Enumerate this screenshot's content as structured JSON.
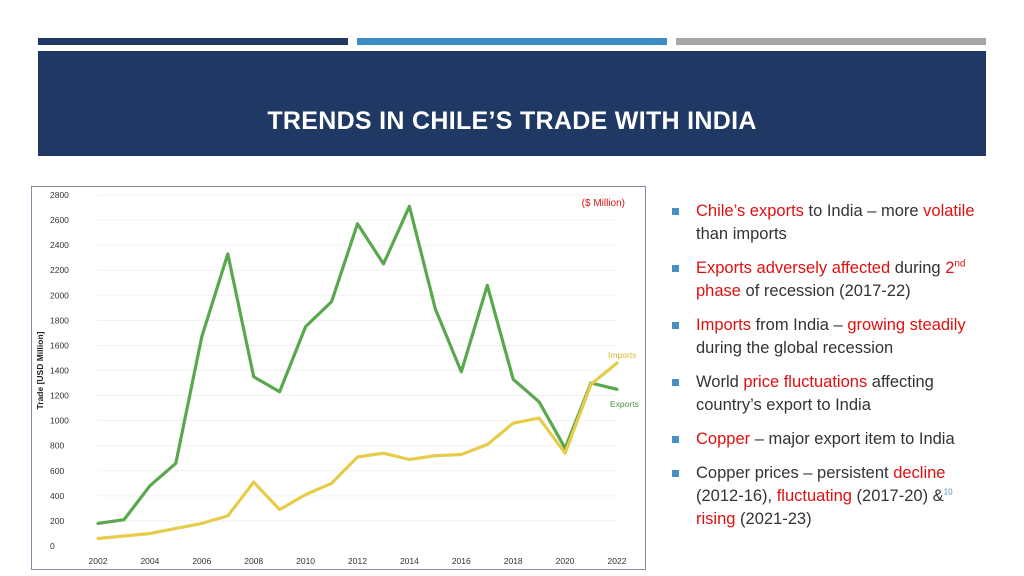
{
  "slide": {
    "title": "TRENDS IN CHILE’S TRADE WITH INDIA",
    "colors": {
      "title_band": "#1f3864",
      "accent_blue": "#3c8dc5",
      "accent_gray": "#a6a6a6",
      "highlight": "#e01010"
    }
  },
  "chart_data": {
    "type": "line",
    "unit_label": "($ Million)",
    "ylabel": "Trade [USD Million]",
    "xlabel": "",
    "ylim": [
      0,
      2800
    ],
    "xlim": [
      2002,
      2022
    ],
    "y_ticks": [
      0,
      200,
      400,
      600,
      800,
      1000,
      1200,
      1400,
      1600,
      1800,
      2000,
      2200,
      2400,
      2600,
      2800
    ],
    "x_ticks": [
      2002,
      2004,
      2006,
      2008,
      2010,
      2012,
      2014,
      2016,
      2018,
      2020,
      2022
    ],
    "grid": true,
    "x": [
      2002,
      2003,
      2004,
      2005,
      2006,
      2007,
      2008,
      2009,
      2010,
      2011,
      2012,
      2013,
      2014,
      2015,
      2016,
      2017,
      2018,
      2019,
      2020,
      2021,
      2022
    ],
    "series": [
      {
        "name": "Exports",
        "color": "#5aa84e",
        "values": [
          180,
          210,
          480,
          660,
          1670,
          2330,
          1350,
          1230,
          1750,
          1950,
          2570,
          2250,
          2710,
          1890,
          1390,
          2080,
          1330,
          1150,
          780,
          1300,
          1250
        ]
      },
      {
        "name": "Imports",
        "color": "#e6cc4a",
        "values": [
          60,
          80,
          100,
          140,
          180,
          240,
          510,
          290,
          410,
          500,
          710,
          740,
          690,
          720,
          730,
          810,
          980,
          1020,
          740,
          1290,
          1460
        ]
      }
    ]
  },
  "bullets": [
    {
      "parts": [
        {
          "t": "Chile’s exports",
          "red": true
        },
        {
          "t": " to India – more "
        },
        {
          "t": "volatile",
          "red": true
        },
        {
          "t": " than imports"
        }
      ]
    },
    {
      "parts": [
        {
          "t": "Exports adversely affected",
          "red": true
        },
        {
          "t": " during "
        },
        {
          "t": "2",
          "red": true
        },
        {
          "t": "nd",
          "red": true,
          "sup": true
        },
        {
          "t": " phase",
          "red": true
        },
        {
          "t": " of recession (2017-22)"
        }
      ]
    },
    {
      "parts": [
        {
          "t": "Imports",
          "red": true
        },
        {
          "t": " from India – "
        },
        {
          "t": "growing steadily",
          "red": true
        },
        {
          "t": " during the global recession"
        }
      ]
    },
    {
      "parts": [
        {
          "t": "World "
        },
        {
          "t": "price fluctuations",
          "red": true
        },
        {
          "t": " affecting country’s export to India"
        }
      ]
    },
    {
      "parts": [
        {
          "t": "Copper",
          "red": true
        },
        {
          "t": " – major export item to India"
        }
      ]
    },
    {
      "parts": [
        {
          "t": "Copper prices – persistent "
        },
        {
          "t": "decline",
          "red": true
        },
        {
          "t": " (2012-16), "
        },
        {
          "t": "fluctuating",
          "red": true
        },
        {
          "t": " (2017-20) &"
        },
        {
          "t": "10",
          "cite": true
        },
        {
          "t": " "
        },
        {
          "t": "rising",
          "red": true
        },
        {
          "t": " (2021-23)"
        }
      ]
    }
  ]
}
